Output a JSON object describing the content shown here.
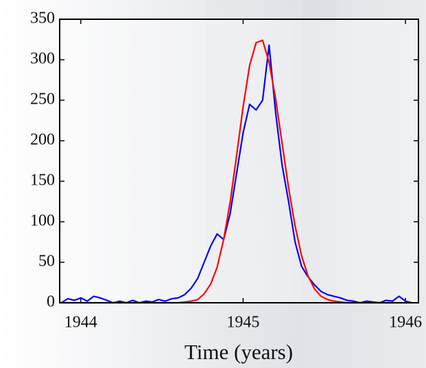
{
  "chart_data": {
    "type": "line",
    "xlabel": "Time (years)",
    "x": [
      1943.88,
      1943.92,
      1943.96,
      1944.0,
      1944.04,
      1944.08,
      1944.12,
      1944.16,
      1944.2,
      1944.24,
      1944.28,
      1944.32,
      1944.36,
      1944.4,
      1944.44,
      1944.48,
      1944.52,
      1944.56,
      1944.6,
      1944.64,
      1944.68,
      1944.72,
      1944.76,
      1944.8,
      1944.84,
      1944.88,
      1944.92,
      1944.96,
      1945.0,
      1945.04,
      1945.08,
      1945.12,
      1945.16,
      1945.2,
      1945.24,
      1945.28,
      1945.32,
      1945.36,
      1945.4,
      1945.44,
      1945.48,
      1945.52,
      1945.56,
      1945.6,
      1945.64,
      1945.68,
      1945.72,
      1945.76,
      1945.8,
      1945.84,
      1945.88,
      1945.92,
      1945.96,
      1946.0,
      1946.04
    ],
    "series": [
      {
        "color": "#0000ff",
        "values": [
          0,
          5,
          3,
          6,
          2,
          8,
          6,
          3,
          0,
          2,
          0,
          3,
          0,
          2,
          1,
          4,
          2,
          5,
          6,
          10,
          18,
          30,
          50,
          70,
          85,
          78,
          110,
          160,
          210,
          245,
          238,
          250,
          318,
          235,
          170,
          125,
          75,
          45,
          32,
          22,
          14,
          10,
          8,
          6,
          3,
          2,
          0,
          2,
          1,
          0,
          3,
          2,
          8,
          2,
          0
        ]
      },
      {
        "color": "#ff0000",
        "values": [
          0,
          0,
          0,
          0,
          0,
          0,
          0,
          0,
          0,
          0,
          0,
          0,
          0,
          0,
          0,
          0,
          0,
          0,
          0,
          1,
          2,
          4,
          11,
          23,
          44,
          78,
          124,
          182,
          242,
          293,
          321,
          324,
          297,
          252,
          197,
          142,
          95,
          58,
          33,
          17,
          8,
          4,
          2,
          1,
          0,
          0,
          0,
          0,
          0,
          0,
          0,
          0,
          0,
          0,
          0
        ]
      }
    ],
    "xlim": [
      1943.87,
      1946.08
    ],
    "ylim": [
      0,
      350
    ],
    "xticks": [
      1944,
      1945,
      1946
    ],
    "yticks": [
      0,
      50,
      100,
      150,
      200,
      250,
      300,
      350
    ]
  }
}
